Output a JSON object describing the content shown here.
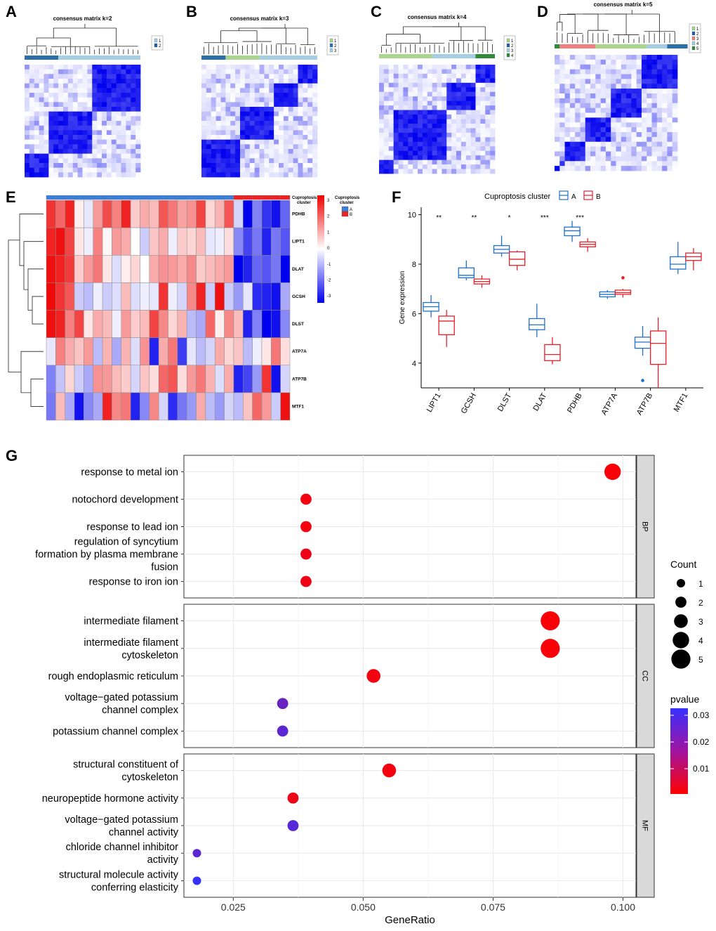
{
  "panel_labels": [
    "A",
    "B",
    "C",
    "D",
    "E",
    "F",
    "G"
  ],
  "colors": {
    "blue_strong": "#0000ee",
    "red_strong": "#ee0000",
    "cluster_A": "#1f6fd1",
    "cluster_B": "#e8202a",
    "panel_strip": "#d9d9d9",
    "grid": "#ebebeb"
  },
  "consensus": [
    {
      "title": "consensus matrix k=2",
      "legend": [
        "1",
        "2"
      ]
    },
    {
      "title": "consensus matrix k=3",
      "legend": [
        "1",
        "2",
        "3"
      ]
    },
    {
      "title": "consensus matrix k=4",
      "legend": [
        "1",
        "2",
        "3",
        "4"
      ]
    },
    {
      "title": "consensus matrix k=5",
      "legend": [
        "1",
        "2",
        "3",
        "4",
        "5"
      ]
    }
  ],
  "heatmap": {
    "annotation_label": "Cuproptosis cluster",
    "legend_title": "Cuproptosis cluster",
    "legend_groups": [
      "A",
      "B"
    ],
    "scale_ticks": [
      "3",
      "2",
      "1",
      "0",
      "-1",
      "-2",
      "-3"
    ],
    "genes": [
      "PDHB",
      "LIPT1",
      "DLAT",
      "GCSH",
      "DLST",
      "ATP7A",
      "ATP7B",
      "MTF1"
    ],
    "n_A": 20,
    "n_B": 6
  },
  "chart_data": [
    {
      "type": "box",
      "panel": "F",
      "legend_title": "Cuproptosis cluster",
      "groups": [
        "A",
        "B"
      ],
      "ylabel": "Gene expression",
      "xlabel": "",
      "ylim": [
        3,
        10.3
      ],
      "yticks": [
        4,
        6,
        8,
        10
      ],
      "categories": [
        "LIPT1",
        "GCSH",
        "DLST",
        "DLAT",
        "PDHB",
        "ATP7A",
        "ATP7B",
        "MTF1"
      ],
      "significance": [
        "**",
        "**",
        "*",
        "***",
        "***",
        "",
        "",
        ""
      ],
      "series": [
        {
          "name": "A",
          "boxes": [
            {
              "min": 5.85,
              "q1": 6.1,
              "median": 6.28,
              "q3": 6.45,
              "max": 6.75
            },
            {
              "min": 7.35,
              "q1": 7.45,
              "median": 7.55,
              "q3": 7.85,
              "max": 8.15
            },
            {
              "min": 8.3,
              "q1": 8.45,
              "median": 8.6,
              "q3": 8.75,
              "max": 9.15
            },
            {
              "min": 5.05,
              "q1": 5.35,
              "median": 5.55,
              "q3": 5.8,
              "max": 6.4
            },
            {
              "min": 8.9,
              "q1": 9.15,
              "median": 9.35,
              "q3": 9.5,
              "max": 9.75
            },
            {
              "min": 6.6,
              "q1": 6.68,
              "median": 6.78,
              "q3": 6.88,
              "max": 6.95
            },
            {
              "min": 4.3,
              "q1": 4.6,
              "median": 4.85,
              "q3": 5.05,
              "max": 5.5,
              "outliers": [
                3.3
              ]
            },
            {
              "min": 7.6,
              "q1": 7.8,
              "median": 8.0,
              "q3": 8.3,
              "max": 8.9
            }
          ]
        },
        {
          "name": "B",
          "boxes": [
            {
              "min": 4.65,
              "q1": 5.15,
              "median": 5.7,
              "q3": 5.9,
              "max": 6.15
            },
            {
              "min": 7.05,
              "q1": 7.2,
              "median": 7.3,
              "q3": 7.4,
              "max": 7.55
            },
            {
              "min": 7.75,
              "q1": 7.95,
              "median": 8.2,
              "q3": 8.5,
              "max": 8.55
            },
            {
              "min": 3.95,
              "q1": 4.1,
              "median": 4.35,
              "q3": 4.75,
              "max": 5.05
            },
            {
              "min": 8.5,
              "q1": 8.7,
              "median": 8.8,
              "q3": 8.9,
              "max": 9.05
            },
            {
              "min": 6.65,
              "q1": 6.78,
              "median": 6.85,
              "q3": 6.95,
              "max": 7.0,
              "outliers": [
                7.45
              ]
            },
            {
              "min": 3.0,
              "q1": 3.95,
              "median": 4.8,
              "q3": 5.3,
              "max": 5.85
            },
            {
              "min": 7.75,
              "q1": 8.15,
              "median": 8.3,
              "q3": 8.45,
              "max": 8.65
            }
          ]
        }
      ]
    },
    {
      "type": "scatter",
      "panel": "G",
      "title": "",
      "xlabel": "GeneRatio",
      "xlim": [
        0.0155,
        0.1025
      ],
      "xticks": [
        0.025,
        0.05,
        0.075,
        0.1
      ],
      "xtick_labels": [
        "0.025",
        "0.050",
        "0.075",
        "0.100"
      ],
      "size_legend": {
        "title": "Count",
        "values": [
          1,
          2,
          3,
          4,
          5
        ]
      },
      "color_legend": {
        "title": "pvalue",
        "ticks": [
          "0.03",
          "0.02",
          "0.01"
        ],
        "range": [
          0.0,
          0.033
        ]
      },
      "facets": [
        {
          "name": "BP",
          "terms": [
            {
              "label": [
                "response to metal ion"
              ],
              "x": 0.098,
              "count": 4,
              "p": 0.001
            },
            {
              "label": [
                "notochord development"
              ],
              "x": 0.039,
              "count": 2,
              "p": 0.002
            },
            {
              "label": [
                "response to lead ion"
              ],
              "x": 0.039,
              "count": 2,
              "p": 0.002
            },
            {
              "label": [
                "regulation of syncytium",
                "formation by plasma membrane",
                "fusion"
              ],
              "x": 0.039,
              "count": 2,
              "p": 0.003
            },
            {
              "label": [
                "response to iron ion"
              ],
              "x": 0.039,
              "count": 2,
              "p": 0.003
            }
          ]
        },
        {
          "name": "CC",
          "terms": [
            {
              "label": [
                "intermediate filament"
              ],
              "x": 0.086,
              "count": 5,
              "p": 0.001
            },
            {
              "label": [
                "intermediate filament",
                "cytoskeleton"
              ],
              "x": 0.086,
              "count": 5,
              "p": 0.001
            },
            {
              "label": [
                "rough endoplasmic reticulum"
              ],
              "x": 0.052,
              "count": 3,
              "p": 0.002
            },
            {
              "label": [
                "voltage−gated potassium",
                "channel complex"
              ],
              "x": 0.0345,
              "count": 2,
              "p": 0.025
            },
            {
              "label": [
                "potassium channel complex"
              ],
              "x": 0.0345,
              "count": 2,
              "p": 0.027
            }
          ]
        },
        {
          "name": "MF",
          "terms": [
            {
              "label": [
                "structural constituent of",
                "cytoskeleton"
              ],
              "x": 0.055,
              "count": 3,
              "p": 0.002
            },
            {
              "label": [
                "neuropeptide hormone activity"
              ],
              "x": 0.0365,
              "count": 2,
              "p": 0.003
            },
            {
              "label": [
                "voltage−gated potassium",
                "channel activity"
              ],
              "x": 0.0365,
              "count": 2,
              "p": 0.028
            },
            {
              "label": [
                "chloride channel inhibitor",
                "activity"
              ],
              "x": 0.018,
              "count": 1,
              "p": 0.027
            },
            {
              "label": [
                "structural molecule activity",
                "conferring elasticity"
              ],
              "x": 0.018,
              "count": 1,
              "p": 0.033
            }
          ]
        }
      ]
    }
  ]
}
